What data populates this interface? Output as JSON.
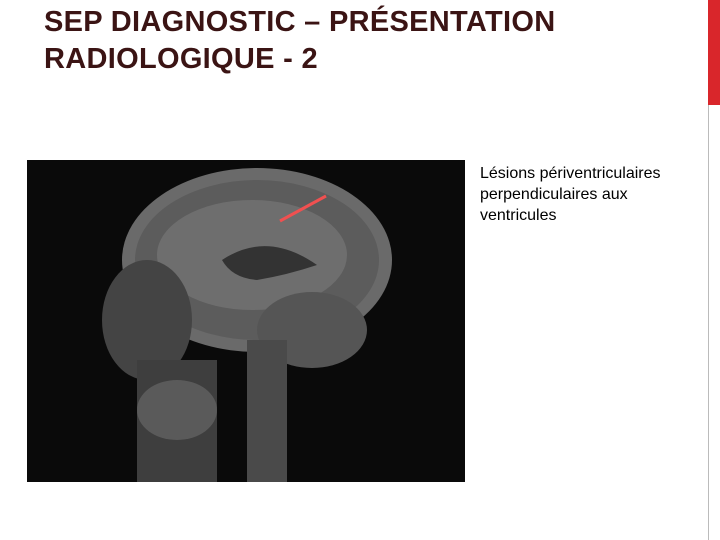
{
  "title": "SEP DIAGNOSTIC – PRÉSENTATION RADIOLOGIQUE - 2",
  "caption": "Lésions périventriculaires perpendiculaires aux ventricules"
}
